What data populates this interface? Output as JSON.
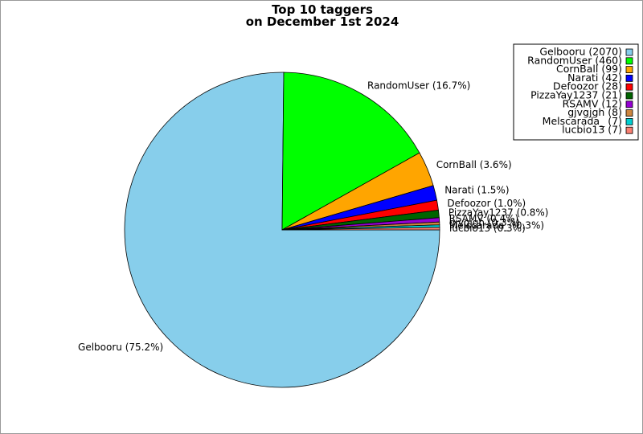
{
  "chart_data": {
    "type": "pie",
    "title": "Top 10 taggers",
    "subtitle": "on December 1st 2024",
    "legend_position": "top-right",
    "start_angle_deg": 0,
    "direction": "clockwise",
    "slices": [
      {
        "name": "Gelbooru",
        "value": 2070,
        "label": "Gelbooru (75.2%)",
        "legend": "Gelbooru (2070)",
        "color": "#87ceeb"
      },
      {
        "name": "RandomUser",
        "value": 460,
        "label": "RandomUser (16.7%)",
        "legend": "RandomUser (460)",
        "color": "#00ff00"
      },
      {
        "name": "CornBall",
        "value": 99,
        "label": "CornBall (3.6%)",
        "legend": "CornBall (99)",
        "color": "#ffa500"
      },
      {
        "name": "Narati",
        "value": 42,
        "label": "Narati (1.5%)",
        "legend": "Narati (42)",
        "color": "#0000ff"
      },
      {
        "name": "Defoozor",
        "value": 28,
        "label": "Defoozor (1.0%)",
        "legend": "Defoozor (28)",
        "color": "#ff0000"
      },
      {
        "name": "PizzaYay1237",
        "value": 21,
        "label": "PizzaYay1237 (0.8%)",
        "legend": "PizzaYay1237 (21)",
        "color": "#006400"
      },
      {
        "name": "RSAMV",
        "value": 12,
        "label": "RSAMV (0.4%)",
        "legend": "RSAMV (12)",
        "color": "#9400d3"
      },
      {
        "name": "gjvgjgh",
        "value": 8,
        "label": "gjvgjgh (0.3%)",
        "legend": "gjvgjgh (8)",
        "color": "#cd853f"
      },
      {
        "name": "Melscarada_",
        "value": 7,
        "label": "Melscarada_ (0.3%)",
        "legend": "Melscarada_ (7)",
        "color": "#00ced1"
      },
      {
        "name": "lucbio13",
        "value": 7,
        "label": "lucbio13 (0.3%)",
        "legend": "lucbio13 (7)",
        "color": "#fa8072"
      }
    ]
  }
}
